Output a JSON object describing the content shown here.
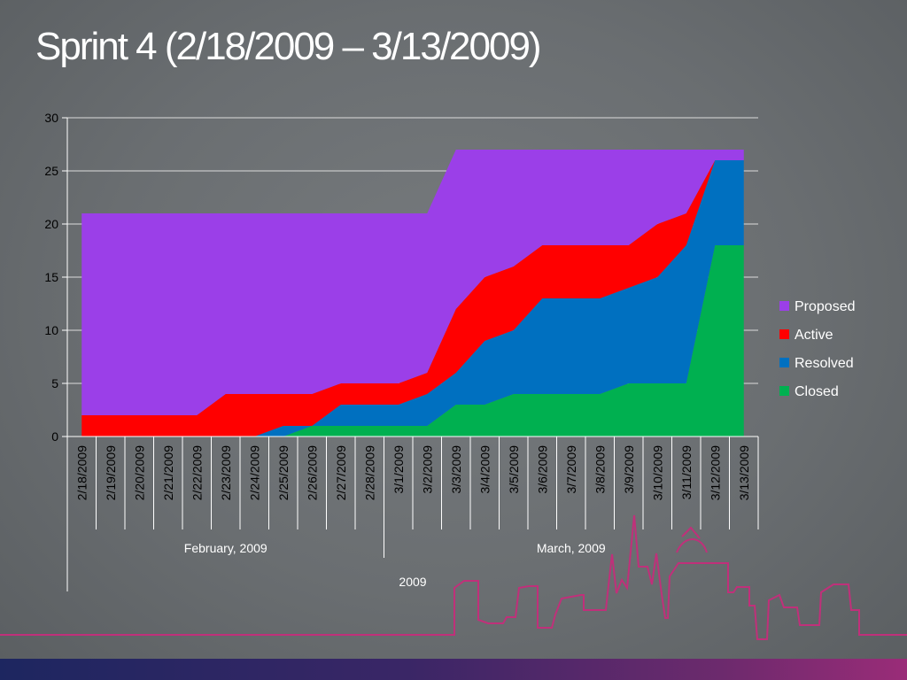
{
  "slide": {
    "title": "Sprint 4 (2/18/2009 – 3/13/2009)"
  },
  "chart_data": {
    "type": "area",
    "stacked": true,
    "categories": [
      "2/18/2009",
      "2/19/2009",
      "2/20/2009",
      "2/21/2009",
      "2/22/2009",
      "2/23/2009",
      "2/24/2009",
      "2/25/2009",
      "2/26/2009",
      "2/27/2009",
      "2/28/2009",
      "3/1/2009",
      "3/2/2009",
      "3/3/2009",
      "3/4/2009",
      "3/5/2009",
      "3/6/2009",
      "3/7/2009",
      "3/8/2009",
      "3/9/2009",
      "3/10/2009",
      "3/11/2009",
      "3/12/2009",
      "3/13/2009"
    ],
    "category_groups": [
      {
        "label": "February, 2009",
        "count": 11
      },
      {
        "label": "March, 2009",
        "count": 13
      }
    ],
    "year_label": "2009",
    "series": [
      {
        "name": "Closed",
        "color": "#00b050",
        "values": [
          0,
          0,
          0,
          0,
          0,
          0,
          0,
          0,
          1,
          1,
          1,
          1,
          1,
          3,
          3,
          4,
          4,
          4,
          4,
          5,
          5,
          5,
          18,
          18
        ]
      },
      {
        "name": "Resolved",
        "color": "#0070c0",
        "values": [
          0,
          0,
          0,
          0,
          0,
          0,
          0,
          1,
          0,
          2,
          2,
          2,
          3,
          3,
          6,
          6,
          9,
          9,
          9,
          9,
          10,
          13,
          8,
          8
        ]
      },
      {
        "name": "Active",
        "color": "#ff0000",
        "values": [
          2,
          2,
          2,
          2,
          2,
          4,
          4,
          3,
          3,
          2,
          2,
          2,
          2,
          6,
          6,
          6,
          5,
          5,
          5,
          4,
          5,
          3,
          0,
          0
        ]
      },
      {
        "name": "Proposed",
        "color": "#9b3fe8",
        "values": [
          19,
          19,
          19,
          19,
          19,
          17,
          17,
          17,
          17,
          16,
          16,
          16,
          15,
          15,
          12,
          11,
          9,
          9,
          9,
          9,
          7,
          6,
          1,
          1
        ]
      }
    ],
    "legend_order": [
      "Proposed",
      "Active",
      "Resolved",
      "Closed"
    ],
    "legend_position": "right",
    "ylim": [
      0,
      30
    ],
    "yticks": [
      0,
      5,
      10,
      15,
      20,
      25,
      30
    ],
    "grid": "horizontal",
    "xlabel": "",
    "ylabel": ""
  }
}
